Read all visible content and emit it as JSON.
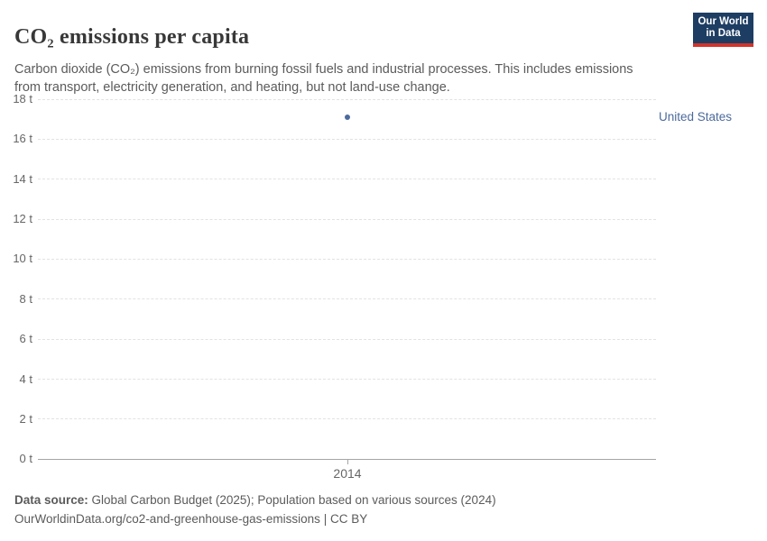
{
  "header": {
    "title": "CO₂ emissions per capita",
    "subtitle": "Carbon dioxide (CO₂) emissions from burning fossil fuels and industrial processes. This includes emissions from transport, electricity generation, and heating, but not land-use change.",
    "logo": {
      "line1": "Our World",
      "line2": "in Data"
    }
  },
  "chart_data": {
    "type": "scatter",
    "title": "CO₂ emissions per capita",
    "xlabel": "",
    "ylabel": "",
    "x": [
      2014
    ],
    "x_tick_labels": [
      "2014"
    ],
    "series": [
      {
        "name": "United States",
        "color": "#4c6a9c",
        "values": [
          17.1
        ]
      }
    ],
    "y_ticks": [
      0,
      2,
      4,
      6,
      8,
      10,
      12,
      14,
      16,
      18
    ],
    "y_tick_labels": [
      "0 t",
      "2 t",
      "4 t",
      "6 t",
      "8 t",
      "10 t",
      "12 t",
      "14 t",
      "16 t",
      "18 t"
    ],
    "ylim": [
      0,
      18
    ],
    "grid": "horizontal-dashed",
    "legend_position": "right"
  },
  "footer": {
    "source_label": "Data source:",
    "source_text": "Global Carbon Budget (2025); Population based on various sources (2024)",
    "url": "OurWorldinData.org/co2-and-greenhouse-gas-emissions",
    "license": "| CC BY"
  },
  "colors": {
    "accent": "#4c6a9c",
    "logo_bg": "#1d3d63",
    "logo_accent": "#d1342b",
    "grid": "#e2e2e2",
    "axis": "#a5a5a5",
    "muted_text": "#666666"
  }
}
